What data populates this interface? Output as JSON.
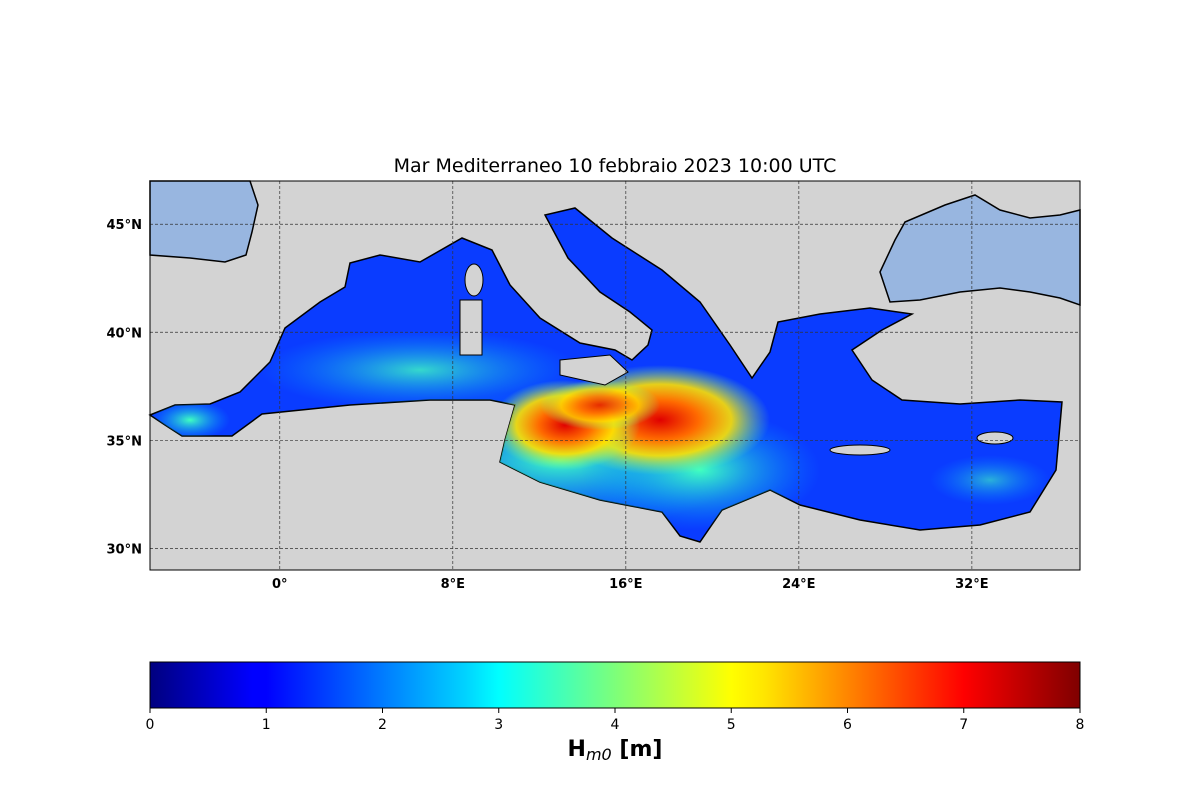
{
  "title": "Mar Mediterraneo 10 febbraio 2023  10:00 UTC",
  "map": {
    "lon_range": [
      -6,
      37
    ],
    "lat_range": [
      29,
      47
    ],
    "lon_ticks": [
      {
        "value": 0,
        "label": "0°"
      },
      {
        "value": 8,
        "label": "8°E"
      },
      {
        "value": 16,
        "label": "16°E"
      },
      {
        "value": 24,
        "label": "24°E"
      },
      {
        "value": 32,
        "label": "32°E"
      }
    ],
    "lat_ticks": [
      {
        "value": 45,
        "label": "45°N"
      },
      {
        "value": 40,
        "label": "40°N"
      },
      {
        "value": 35,
        "label": "35°N"
      },
      {
        "value": 30,
        "label": "30°N"
      }
    ],
    "grid": true,
    "colors": {
      "land": "#d3d3d3",
      "other_water": "#98b6e0",
      "coast": "#000000"
    },
    "max_wave_area": "Ionian Sea / Strait of Sicily, ~7 m"
  },
  "colorbar": {
    "label_main": "H",
    "label_sub": "m0",
    "label_unit": " [m]",
    "range": [
      0,
      8
    ],
    "ticks": [
      "0",
      "1",
      "2",
      "3",
      "4",
      "5",
      "6",
      "7",
      "8"
    ],
    "colormap": "jet"
  }
}
